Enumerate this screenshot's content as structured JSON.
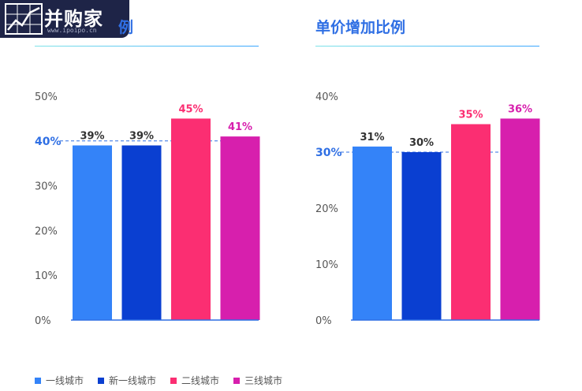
{
  "watermark": {
    "brand": "并购家",
    "url": "www.ipoipo.cn"
  },
  "legend": [
    {
      "label": "一线城市",
      "color": "#3483f8"
    },
    {
      "label": "新一线城市",
      "color": "#0a3fd1"
    },
    {
      "label": "二线城市",
      "color": "#fb2e72"
    },
    {
      "label": "三线城市",
      "color": "#d71fad"
    }
  ],
  "chart_data": [
    {
      "type": "bar",
      "title": "例",
      "categories": [
        "一线城市",
        "新一线城市",
        "二线城市",
        "三线城市"
      ],
      "values": [
        39,
        39,
        45,
        41
      ],
      "value_labels": [
        "39%",
        "39%",
        "45%",
        "41%"
      ],
      "colors": [
        "#3483f8",
        "#0a3fd1",
        "#fb2e72",
        "#d71fad"
      ],
      "label_colors": [
        "#333333",
        "#333333",
        "#fb2e72",
        "#d71fad"
      ],
      "ylim": [
        0,
        50
      ],
      "yticks": [
        0,
        10,
        20,
        30,
        40,
        50
      ],
      "ytick_labels": [
        "0%",
        "10%",
        "20%",
        "30%",
        "40%",
        "50%"
      ],
      "reference_line": {
        "value": 40,
        "label": "40%"
      },
      "grid": false
    },
    {
      "type": "bar",
      "title": "单价增加比例",
      "categories": [
        "一线城市",
        "新一线城市",
        "二线城市",
        "三线城市"
      ],
      "values": [
        31,
        30,
        35,
        36
      ],
      "value_labels": [
        "31%",
        "30%",
        "35%",
        "36%"
      ],
      "colors": [
        "#3483f8",
        "#0a3fd1",
        "#fb2e72",
        "#d71fad"
      ],
      "label_colors": [
        "#333333",
        "#333333",
        "#fb2e72",
        "#d71fad"
      ],
      "ylim": [
        0,
        40
      ],
      "yticks": [
        0,
        10,
        20,
        30,
        40
      ],
      "ytick_labels": [
        "0%",
        "10%",
        "20%",
        "30%",
        "40%"
      ],
      "reference_line": {
        "value": 30,
        "label": "30%"
      },
      "grid": false
    }
  ]
}
